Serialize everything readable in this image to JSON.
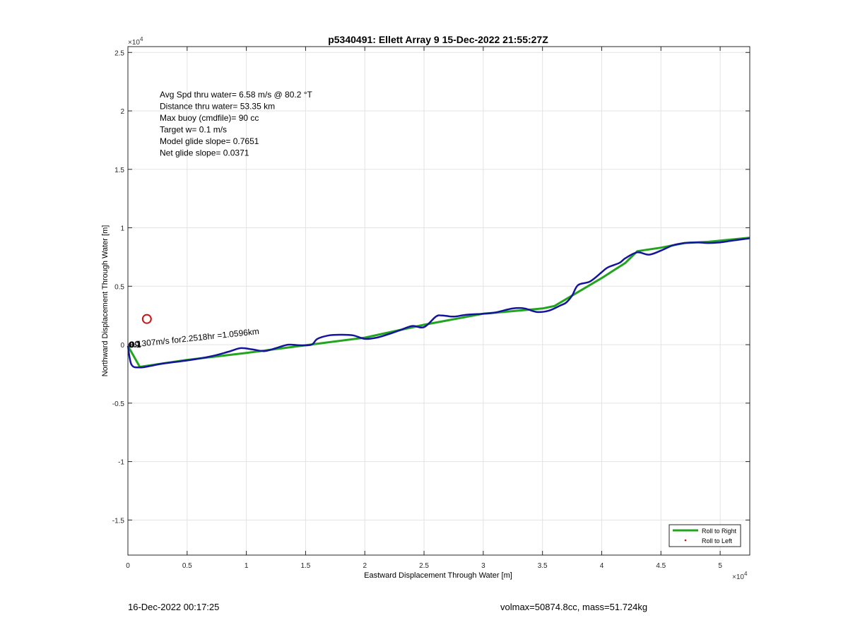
{
  "chart_data": {
    "type": "line",
    "title": "p5340491: Ellett Array 9 15-Dec-2022 21:55:27Z",
    "xlabel": "Eastward Displacement Through Water [m]",
    "ylabel": "Northward Displacement Through Water [m]",
    "xlim": [
      0,
      52500
    ],
    "ylim": [
      -18000,
      25500
    ],
    "x_multiplier": "×10",
    "y_multiplier": "×10",
    "multiplier_exp": "4",
    "x_ticks": [
      0,
      5000,
      10000,
      15000,
      20000,
      25000,
      30000,
      35000,
      40000,
      45000,
      50000
    ],
    "x_tick_labels": [
      "0",
      "0.5",
      "1",
      "1.5",
      "2",
      "2.5",
      "3",
      "3.5",
      "4",
      "4.5",
      "5"
    ],
    "y_ticks": [
      -15000,
      -10000,
      -5000,
      0,
      5000,
      10000,
      15000,
      20000,
      25000
    ],
    "y_tick_labels": [
      "-1.5",
      "-1",
      "-0.5",
      "0",
      "0.5",
      "1",
      "1.5",
      "2",
      "2.5"
    ],
    "grid": true,
    "legend_position": "bottom-right",
    "series": [
      {
        "name": "Roll to Right",
        "color": "#22a51e",
        "x": [
          0,
          1000,
          5000,
          10000,
          15000,
          20000,
          25000,
          30000,
          35000,
          36000,
          40000,
          42000,
          43000,
          45000,
          47000,
          49000,
          52500
        ],
        "y": [
          -100,
          -1900,
          -1300,
          -700,
          -50,
          600,
          1700,
          2650,
          3100,
          3300,
          5700,
          7000,
          8000,
          8300,
          8700,
          8800,
          9150
        ]
      },
      {
        "name": "Roll to Left",
        "color": "#d01010",
        "x": [],
        "y": []
      },
      {
        "name": "",
        "color": "#14149e",
        "x": [
          0,
          300,
          1000,
          2000,
          3000,
          5000,
          7000,
          8500,
          9500,
          10500,
          11500,
          12500,
          13500,
          14500,
          15500,
          16000,
          17000,
          18000,
          19000,
          20000,
          21000,
          22000,
          23000,
          24000,
          25000,
          26000,
          26500,
          27500,
          28500,
          30000,
          31000,
          32500,
          33500,
          34500,
          35500,
          36500,
          37000,
          37500,
          38000,
          39000,
          40000,
          40500,
          41500,
          42000,
          43000,
          44000,
          45000,
          46000,
          47000,
          48000,
          49000,
          50000,
          51000,
          52500
        ],
        "y": [
          -100,
          -1700,
          -1950,
          -1800,
          -1600,
          -1350,
          -1000,
          -600,
          -300,
          -400,
          -550,
          -300,
          0,
          -50,
          0,
          500,
          800,
          850,
          800,
          500,
          600,
          900,
          1250,
          1600,
          1500,
          2400,
          2500,
          2400,
          2550,
          2650,
          2750,
          3100,
          3100,
          2800,
          2900,
          3350,
          3600,
          4200,
          5100,
          5400,
          6200,
          6600,
          7000,
          7400,
          7900,
          7700,
          8050,
          8500,
          8700,
          8750,
          8700,
          8750,
          8900,
          9100
        ]
      }
    ],
    "markers": [
      {
        "label": "start-circle",
        "x": 1600,
        "y": 2200
      }
    ],
    "annotation_stats": [
      {
        "label": "Avg Spd thru water=  6.58 m/s @  80.2 °T"
      },
      {
        "label": "Distance thru water= 53.35 km"
      },
      {
        "label": "Max buoy (cmdfile)= 90 cc"
      },
      {
        "label": "Target w= 0.1 m/s"
      },
      {
        "label": "Model glide slope= 0.7651"
      },
      {
        "label": "Net glide slope= 0.0371"
      }
    ],
    "current_label": "0.1307m/s for2.2518hr =1.0596km",
    "current_overlap_label": "0.1"
  },
  "footer": {
    "left": "16-Dec-2022 00:17:25",
    "right": "volmax=50874.8cc, mass=51.724kg"
  }
}
